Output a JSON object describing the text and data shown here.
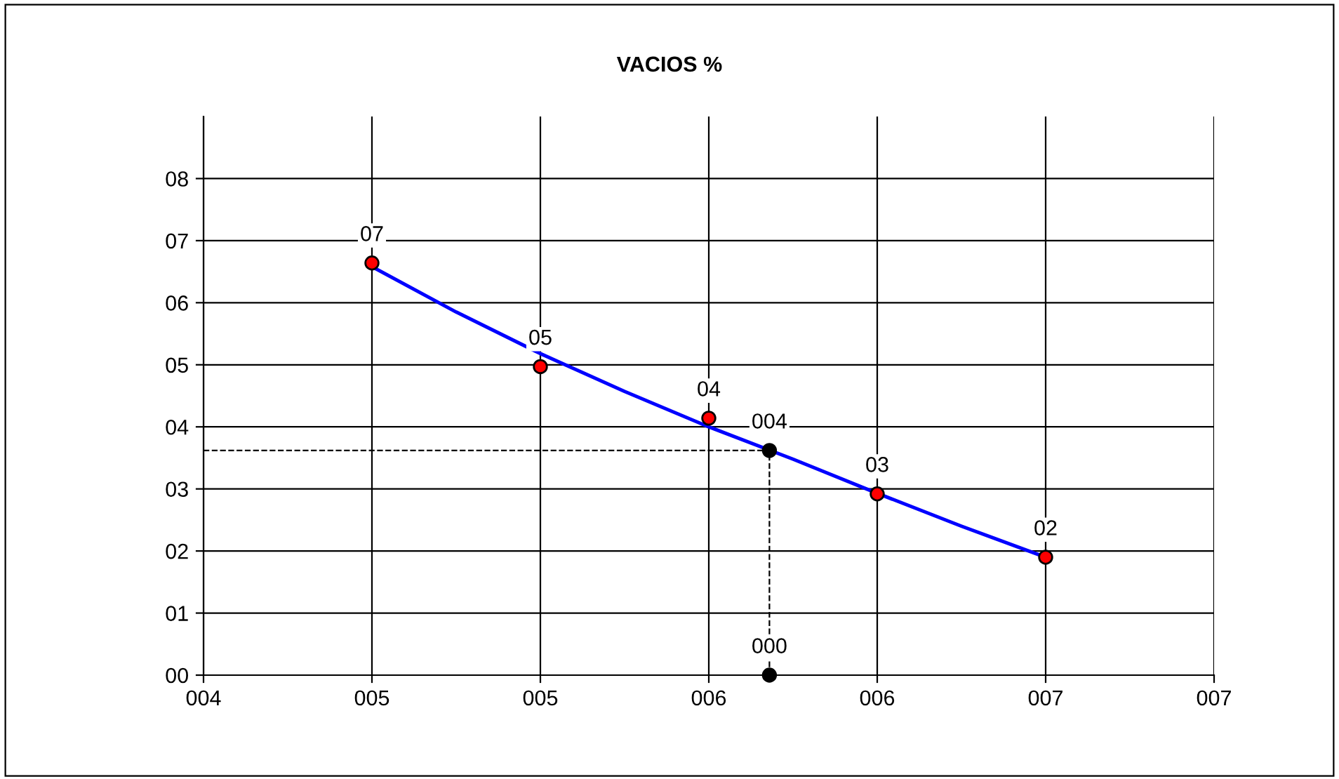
{
  "chart_data": {
    "type": "scatter",
    "title": "VACIOS %",
    "xlim": [
      4.0,
      7.0
    ],
    "ylim": [
      0,
      9
    ],
    "xticks": [
      {
        "value": 4.0,
        "label": "004"
      },
      {
        "value": 4.5,
        "label": "005"
      },
      {
        "value": 5.0,
        "label": "005"
      },
      {
        "value": 5.5,
        "label": "006"
      },
      {
        "value": 6.0,
        "label": "006"
      },
      {
        "value": 6.5,
        "label": "007"
      },
      {
        "value": 7.0,
        "label": "007"
      }
    ],
    "yticks": [
      {
        "value": 0,
        "label": "00"
      },
      {
        "value": 1,
        "label": "01"
      },
      {
        "value": 2,
        "label": "02"
      },
      {
        "value": 3,
        "label": "03"
      },
      {
        "value": 4,
        "label": "04"
      },
      {
        "value": 5,
        "label": "05"
      },
      {
        "value": 6,
        "label": "06"
      },
      {
        "value": 7,
        "label": "07"
      },
      {
        "value": 8,
        "label": "08"
      }
    ],
    "grid": true,
    "legend": false,
    "series": [
      {
        "type": "line",
        "color": "#000000",
        "line_style": "dashed",
        "marker": "none",
        "x": [
          4.0,
          5.68,
          5.68
        ],
        "values": [
          3.62,
          3.62,
          0
        ]
      },
      {
        "type": "line",
        "color": "#0000ff",
        "line_style": "solid",
        "marker": "none",
        "x": [
          4.5,
          4.75,
          5.0,
          5.25,
          5.5,
          5.75,
          6.0,
          6.25,
          6.5
        ],
        "values": [
          6.58,
          5.85,
          5.18,
          4.57,
          4.0,
          3.48,
          2.93,
          2.4,
          1.9
        ]
      },
      {
        "color": "#ff0000",
        "marker": "circle",
        "x": [
          4.5,
          5.0,
          5.5,
          6.0,
          6.5
        ],
        "values": [
          6.64,
          4.97,
          4.14,
          2.92,
          1.9
        ],
        "value_labels": [
          "07",
          "05",
          "04",
          "03",
          "02"
        ]
      },
      {
        "color": "#000000",
        "marker": "circle",
        "x": [
          5.68,
          5.68
        ],
        "values": [
          3.62,
          0
        ],
        "value_labels": [
          "004",
          "000"
        ]
      }
    ]
  }
}
